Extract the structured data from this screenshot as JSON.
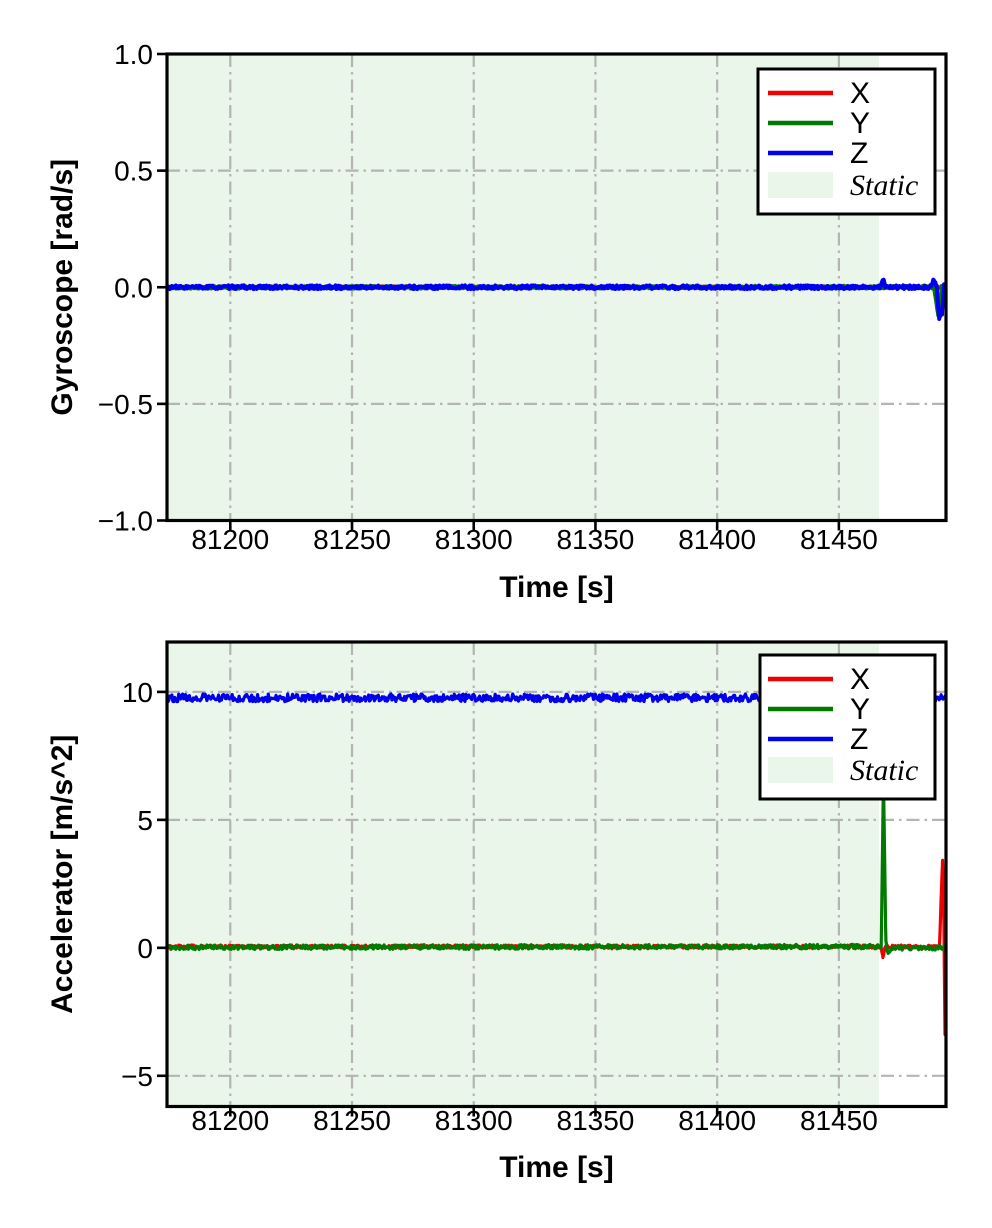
{
  "page": {
    "background": "#ffffff"
  },
  "chart_data": [
    {
      "id": "gyroscope",
      "type": "line",
      "title": "",
      "xlabel": "Time [s]",
      "ylabel": "Gyroscope [rad/s]",
      "xlim": [
        81174,
        81494
      ],
      "ylim": [
        -1.0,
        1.0
      ],
      "xticks": [
        81200,
        81250,
        81300,
        81350,
        81400,
        81450
      ],
      "xtick_labels": [
        "81200",
        "81250",
        "81300",
        "81350",
        "81400",
        "81450"
      ],
      "yticks": [
        1.0,
        0.5,
        0.0,
        -0.5,
        -1.0
      ],
      "ytick_labels": [
        "1.0",
        "0.5",
        "0.0",
        "−0.5",
        "−1.0"
      ],
      "grid": {
        "visible": true,
        "style": "dash-dot",
        "color": "#b4b4b4"
      },
      "static_region": {
        "label": "Static",
        "x_start": 81174,
        "x_end": 81466.5,
        "color": "#e9f6e9"
      },
      "legend": {
        "position": "upper right",
        "entries": [
          {
            "label": "X",
            "swatch": "line",
            "color": "#ee0000",
            "italic": false
          },
          {
            "label": "Y",
            "swatch": "line",
            "color": "#007b00",
            "italic": false
          },
          {
            "label": "Z",
            "swatch": "line",
            "color": "#0000ee",
            "italic": false
          },
          {
            "label": "Static",
            "swatch": "patch",
            "color": "#e9f6e9",
            "italic": true
          }
        ]
      },
      "series": [
        {
          "name": "X",
          "color": "#ee0000",
          "noise_amplitude": 0.004,
          "seed": 11,
          "anchors": [
            [
              81174,
              0.0
            ],
            [
              81494,
              0.0
            ]
          ]
        },
        {
          "name": "Y",
          "color": "#007b00",
          "noise_amplitude": 0.006,
          "seed": 22,
          "anchors": [
            [
              81174,
              0.0
            ],
            [
              81489.0,
              0.0
            ],
            [
              81490.8,
              -0.12
            ],
            [
              81492.3,
              0.0
            ],
            [
              81494,
              0.0
            ]
          ]
        },
        {
          "name": "Z",
          "color": "#0000ee",
          "noise_amplitude": 0.008,
          "seed": 33,
          "anchors": [
            [
              81174,
              0.0
            ],
            [
              81467.2,
              0.0
            ],
            [
              81468.2,
              0.035
            ],
            [
              81469.2,
              0.0
            ],
            [
              81487.5,
              0.0
            ],
            [
              81489.0,
              0.03
            ],
            [
              81490.2,
              0.0
            ],
            [
              81491.2,
              -0.13
            ],
            [
              81492.4,
              -0.11
            ],
            [
              81493.2,
              0.01
            ],
            [
              81494,
              -0.03
            ]
          ]
        }
      ]
    },
    {
      "id": "accelerator",
      "type": "line",
      "title": "",
      "xlabel": "Time [s]",
      "ylabel": "Accelerator [m/s^2]",
      "xlim": [
        81174,
        81494
      ],
      "ylim": [
        -6.2,
        11.95
      ],
      "xticks": [
        81200,
        81250,
        81300,
        81350,
        81400,
        81450
      ],
      "xtick_labels": [
        "81200",
        "81250",
        "81300",
        "81350",
        "81400",
        "81450"
      ],
      "yticks": [
        10,
        5,
        0,
        -5
      ],
      "ytick_labels": [
        "10",
        "5",
        "0",
        "−5"
      ],
      "grid": {
        "visible": true,
        "style": "dash-dot",
        "color": "#b4b4b4"
      },
      "static_region": {
        "label": "Static",
        "x_start": 81174,
        "x_end": 81466.5,
        "color": "#e9f6e9"
      },
      "legend": {
        "position": "upper right",
        "entries": [
          {
            "label": "X",
            "swatch": "line",
            "color": "#ee0000",
            "italic": false
          },
          {
            "label": "Y",
            "swatch": "line",
            "color": "#007b00",
            "italic": false
          },
          {
            "label": "Z",
            "swatch": "line",
            "color": "#0000ee",
            "italic": false
          },
          {
            "label": "Static",
            "swatch": "patch",
            "color": "#e9f6e9",
            "italic": true
          }
        ]
      },
      "series": [
        {
          "name": "X",
          "color": "#ee0000",
          "noise_amplitude": 0.06,
          "seed": 44,
          "anchors": [
            [
              81174,
              0.05
            ],
            [
              81467.3,
              0.05
            ],
            [
              81468.1,
              -0.35
            ],
            [
              81469.0,
              0.05
            ],
            [
              81491.3,
              0.05
            ],
            [
              81492.6,
              3.4
            ],
            [
              81493.0,
              2.0
            ],
            [
              81493.6,
              -3.4
            ],
            [
              81494,
              -2.0
            ]
          ]
        },
        {
          "name": "Y",
          "color": "#007b00",
          "noise_amplitude": 0.09,
          "seed": 55,
          "anchors": [
            [
              81174,
              0.02
            ],
            [
              81467.4,
              0.05
            ],
            [
              81468.3,
              6.5
            ],
            [
              81469.3,
              0.25
            ],
            [
              81470.2,
              -0.2
            ],
            [
              81471.5,
              0.0
            ],
            [
              81494,
              0.0
            ]
          ]
        },
        {
          "name": "Z",
          "color": "#0000ee",
          "noise_amplitude": 0.15,
          "seed": 66,
          "anchors": [
            [
              81174,
              9.77
            ],
            [
              81494,
              9.77
            ]
          ]
        }
      ]
    }
  ]
}
